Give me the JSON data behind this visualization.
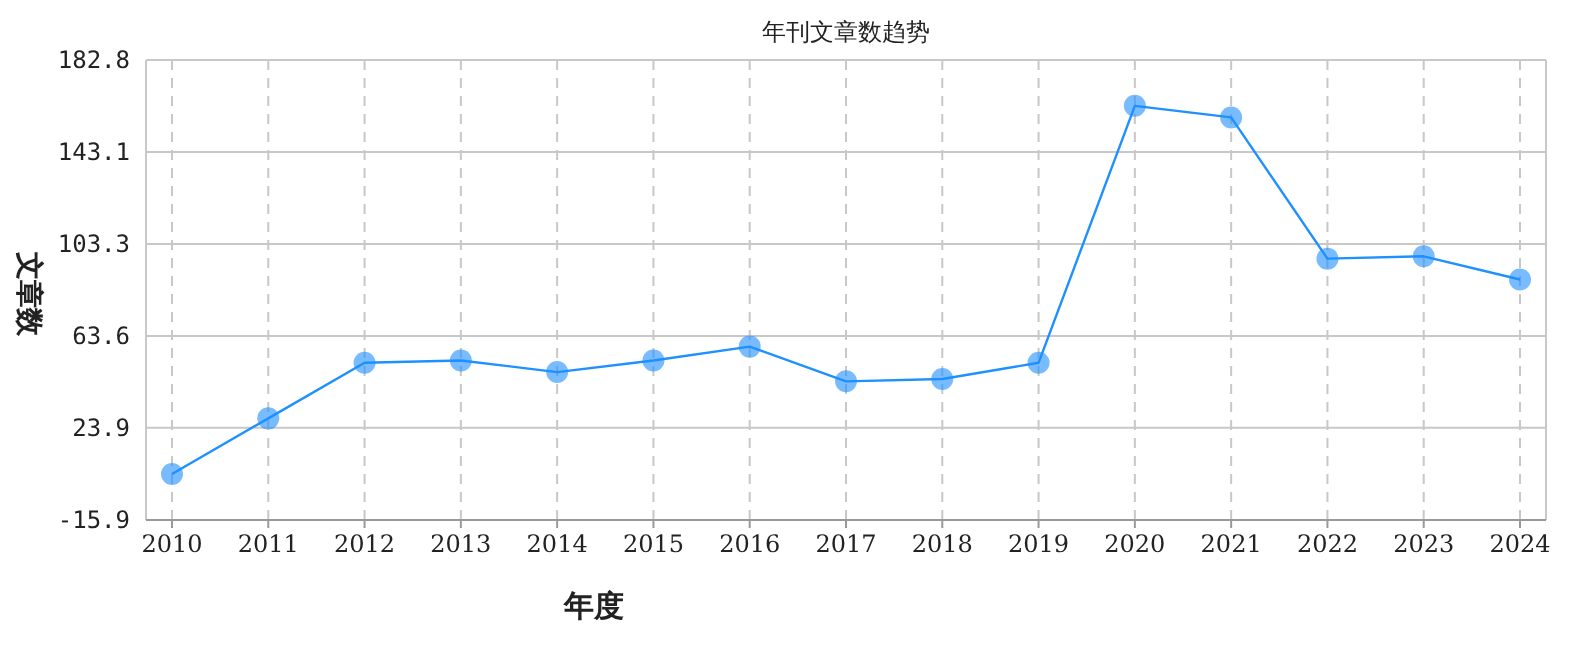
{
  "chart_data": {
    "type": "line",
    "title": "年刊文章数趋势",
    "xlabel": "年度",
    "ylabel": "文章数",
    "categories": [
      "2010",
      "2011",
      "2012",
      "2013",
      "2014",
      "2015",
      "2016",
      "2017",
      "2018",
      "2019",
      "2020",
      "2021",
      "2022",
      "2023",
      "2024"
    ],
    "series": [
      {
        "color": "#1e90ff",
        "values": [
          4,
          28,
          52,
          53,
          48,
          53,
          59,
          44,
          45,
          52,
          163,
          158,
          97,
          98,
          88
        ]
      }
    ],
    "ylim": [
      -15.9,
      182.8
    ],
    "yticks": [
      -15.9,
      23.9,
      63.6,
      103.3,
      143.1,
      182.8
    ],
    "grid": true,
    "marker": "circle",
    "line_style": "solid"
  }
}
